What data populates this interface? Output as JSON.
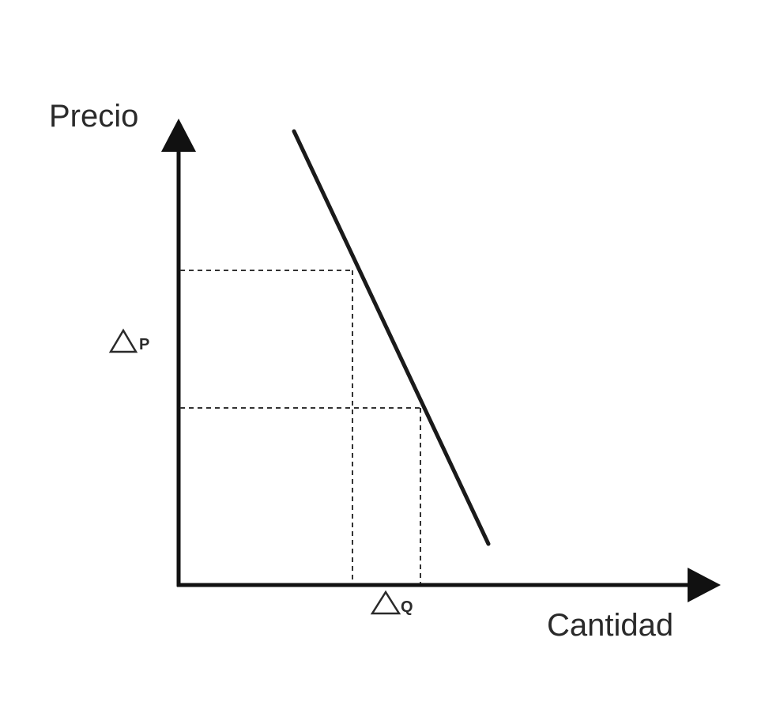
{
  "axes": {
    "y_label": "Precio",
    "x_label": "Cantidad"
  },
  "annotations": {
    "delta_p_symbol": "△",
    "delta_p_letter": "P",
    "delta_q_symbol": "△",
    "delta_q_letter": "Q"
  },
  "colors": {
    "line": "#1a1a1a",
    "guides": "#333333",
    "text": "#2a2a2a"
  }
}
